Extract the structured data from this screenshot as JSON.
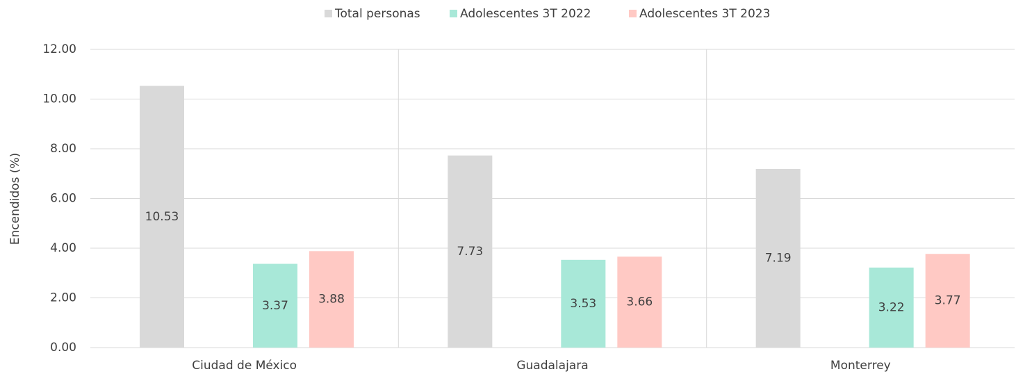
{
  "chart_data": {
    "type": "bar",
    "y_label": "Encendidos (%)",
    "categories": [
      "Ciudad de México",
      "Guadalajara",
      "Monterrey"
    ],
    "series": [
      {
        "name": "Total personas",
        "color": "#d9d9d9",
        "values": [
          10.53,
          7.73,
          7.19
        ]
      },
      {
        "name": "Adolescentes 3T 2022",
        "color": "#a8e8d8",
        "values": [
          3.37,
          3.53,
          3.22
        ]
      },
      {
        "name": "Adolescentes 3T 2023",
        "color": "#ffc9c4",
        "values": [
          3.88,
          3.66,
          3.77
        ]
      }
    ],
    "ylim": [
      0,
      12
    ],
    "yticks": [
      {
        "value": 0,
        "label": "0.00"
      },
      {
        "value": 2,
        "label": "2.00"
      },
      {
        "value": 4,
        "label": "4.00"
      },
      {
        "value": 6,
        "label": "6.00"
      },
      {
        "value": 8,
        "label": "8.00"
      },
      {
        "value": 10,
        "label": "10.00"
      },
      {
        "value": 12,
        "label": "12.00"
      }
    ],
    "grid": true,
    "legend": "top"
  }
}
